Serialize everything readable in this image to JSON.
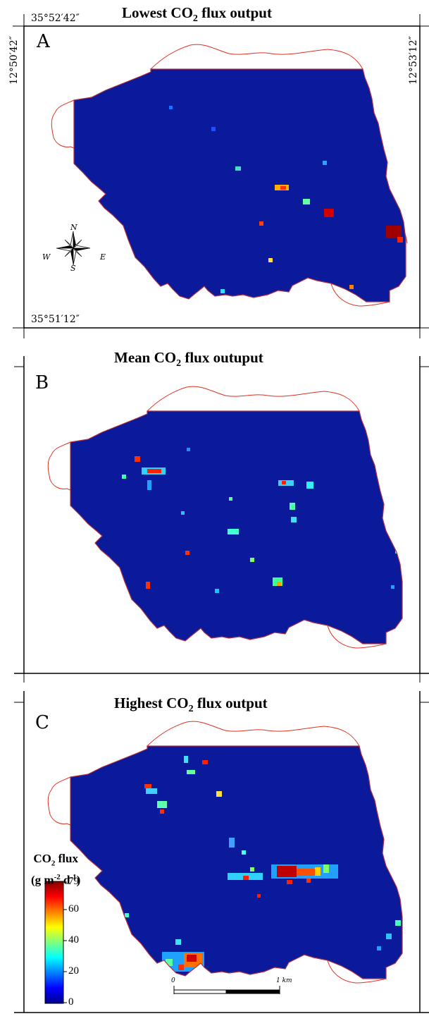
{
  "panels": [
    {
      "letter": "A",
      "title_main": "Lowest CO",
      "title_sub": "2",
      "title_rest": " flux output"
    },
    {
      "letter": "B",
      "title_main": "Mean CO",
      "title_sub": "2",
      "title_rest": " flux outuput"
    },
    {
      "letter": "C",
      "title_main": "Highest CO",
      "title_sub": "2",
      "title_rest": " flux output"
    }
  ],
  "coordinates": {
    "top_left": "35°52′42″",
    "bottom_left": "35°51′12″",
    "left_vertical": "12°50′42″",
    "right_vertical": "12°53′12″"
  },
  "compass": {
    "n": "N",
    "s": "S",
    "e": "E",
    "w": "W",
    "icon": "compass-rose-icon"
  },
  "legend": {
    "title_line1_main": "CO",
    "title_line1_sub": "2",
    "title_line1_rest": " flux",
    "title_line2": "(g m",
    "title_line2_sup1": "-2",
    "title_line2_mid": " d",
    "title_line2_sup2": "-1",
    "title_line2_end": ")",
    "max": "79",
    "ticks": [
      "60",
      "40",
      "20",
      "0"
    ],
    "colormap": "jet"
  },
  "scale_bar": {
    "start": "0",
    "end": "1 km"
  },
  "colors": {
    "map_background": "#0a1a9a",
    "outline": "#e03020"
  }
}
